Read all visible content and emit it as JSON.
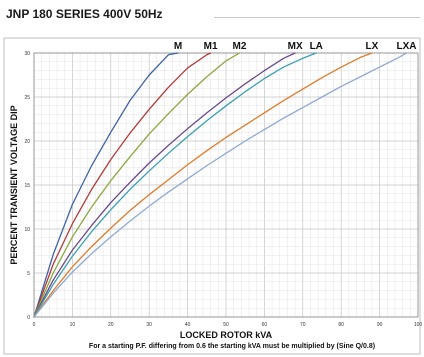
{
  "page": {
    "title": "JNP 180 SERIES 400V 50Hz"
  },
  "chart_data": {
    "type": "line",
    "xlabel": "LOCKED ROTOR kVA",
    "ylabel": "PERCENT TRANSIENT VOLTAGE DIP",
    "footnote": "For a starting P.F. differing from 0.6 the starting kVA must be multiplied by (Sine Q/0.8)",
    "xlim": [
      0,
      100
    ],
    "ylim": [
      0,
      30
    ],
    "x_ticks": [
      0,
      10,
      20,
      30,
      40,
      50,
      60,
      70,
      80,
      90,
      100
    ],
    "y_ticks": [
      0,
      5,
      10,
      15,
      20,
      25,
      30
    ],
    "grid": true,
    "series": [
      {
        "name": "M",
        "color": "#3f63a8",
        "x": [
          0,
          5,
          10,
          15,
          20,
          25,
          30,
          35,
          37.5
        ],
        "y": [
          0,
          7.1,
          12.8,
          17.2,
          21.0,
          24.6,
          27.5,
          29.8,
          30
        ]
      },
      {
        "name": "M1",
        "color": "#b23a3a",
        "x": [
          0,
          5,
          10,
          15,
          20,
          25,
          30,
          35,
          40,
          45,
          46
        ],
        "y": [
          0,
          6.0,
          10.6,
          14.5,
          17.9,
          20.9,
          23.6,
          26.1,
          28.3,
          29.8,
          30
        ]
      },
      {
        "name": "M2",
        "color": "#8aa83e",
        "x": [
          0,
          5,
          10,
          15,
          20,
          25,
          30,
          35,
          40,
          45,
          50,
          53.5
        ],
        "y": [
          0,
          5.0,
          9.1,
          12.5,
          15.5,
          18.2,
          20.8,
          23.1,
          25.3,
          27.3,
          29.1,
          30
        ]
      },
      {
        "name": "MX",
        "color": "#6b4a8c",
        "x": [
          0,
          5,
          10,
          15,
          20,
          25,
          30,
          35,
          40,
          45,
          50,
          55,
          60,
          65,
          68
        ],
        "y": [
          0,
          4.2,
          7.6,
          10.4,
          13.0,
          15.3,
          17.5,
          19.5,
          21.4,
          23.2,
          24.9,
          26.5,
          28.0,
          29.4,
          30
        ]
      },
      {
        "name": "LA",
        "color": "#3a9fb5",
        "x": [
          0,
          5,
          10,
          15,
          20,
          25,
          30,
          35,
          40,
          45,
          50,
          55,
          60,
          65,
          70,
          73.5
        ],
        "y": [
          0,
          3.7,
          6.9,
          9.7,
          12.2,
          14.5,
          16.6,
          18.6,
          20.5,
          22.3,
          24.0,
          25.6,
          27.1,
          28.4,
          29.4,
          30
        ]
      },
      {
        "name": "LX",
        "color": "#e07b2a",
        "x": [
          0,
          5,
          10,
          15,
          20,
          25,
          30,
          35,
          40,
          45,
          50,
          55,
          60,
          65,
          70,
          75,
          80,
          85,
          88
        ],
        "y": [
          0,
          3.0,
          5.7,
          8.0,
          10.1,
          12.1,
          13.9,
          15.6,
          17.3,
          18.9,
          20.4,
          21.8,
          23.2,
          24.6,
          25.9,
          27.2,
          28.4,
          29.5,
          30
        ]
      },
      {
        "name": "LXA",
        "color": "#8fa9d6",
        "x": [
          0,
          5,
          10,
          15,
          20,
          25,
          30,
          35,
          40,
          45,
          50,
          55,
          60,
          65,
          70,
          75,
          80,
          85,
          90,
          95,
          97
        ],
        "y": [
          0,
          2.7,
          5.1,
          7.2,
          9.1,
          10.9,
          12.6,
          14.2,
          15.7,
          17.2,
          18.6,
          20.0,
          21.3,
          22.6,
          23.8,
          25.0,
          26.2,
          27.3,
          28.4,
          29.5,
          30
        ]
      }
    ]
  }
}
